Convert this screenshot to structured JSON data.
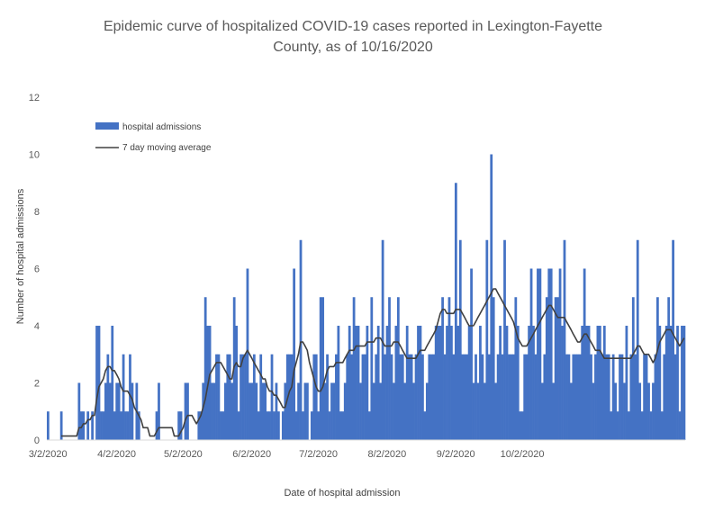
{
  "chart_data": {
    "type": "bar",
    "title_lines": [
      "Epidemic curve of hospitalized COVID-19 cases reported in Lexington-Fayette",
      "County, as of 10/16/2020"
    ],
    "xlabel": "Date of hospital admission",
    "ylabel": "Number of hospital admissions",
    "ylim": [
      0,
      12
    ],
    "yticks": [
      "0",
      "2",
      "4",
      "6",
      "8",
      "10",
      "12"
    ],
    "x_start": "3/2/2020",
    "x_end": "10/15/2020",
    "xtick_labels": [
      "3/2/2020",
      "4/2/2020",
      "5/2/2020",
      "6/2/2020",
      "7/2/2020",
      "8/2/2020",
      "9/2/2020",
      "10/2/2020"
    ],
    "grid": false,
    "legend_position": "upper-left",
    "colors": {
      "bars": "#4472c4",
      "line": "#404040"
    },
    "series": [
      {
        "name": "hospital admissions",
        "kind": "bar",
        "values": [
          1,
          0,
          0,
          0,
          0,
          0,
          1,
          0,
          0,
          0,
          0,
          0,
          0,
          0,
          2,
          1,
          1,
          0,
          1,
          0,
          1,
          0,
          4,
          4,
          1,
          1,
          2,
          3,
          2,
          4,
          1,
          2,
          2,
          1,
          3,
          1,
          1,
          3,
          2,
          0,
          2,
          1,
          0,
          0,
          0,
          0,
          0,
          0,
          0,
          1,
          2,
          0,
          0,
          0,
          0,
          0,
          0,
          0,
          0,
          1,
          1,
          0,
          2,
          2,
          0,
          0,
          0,
          0,
          1,
          1,
          2,
          5,
          4,
          4,
          2,
          2,
          3,
          3,
          1,
          1,
          2,
          3,
          3,
          2,
          5,
          4,
          1,
          3,
          3,
          3,
          6,
          2,
          2,
          3,
          2,
          1,
          3,
          2,
          2,
          1,
          1,
          3,
          1,
          2,
          1,
          0,
          1,
          2,
          3,
          3,
          3,
          6,
          1,
          2,
          7,
          1,
          2,
          2,
          0,
          1,
          3,
          3,
          1,
          5,
          5,
          2,
          3,
          1,
          2,
          2,
          3,
          4,
          1,
          1,
          2,
          3,
          4,
          3,
          5,
          4,
          4,
          2,
          3,
          3,
          4,
          1,
          5,
          2,
          3,
          4,
          2,
          7,
          3,
          4,
          5,
          3,
          2,
          4,
          5,
          3,
          3,
          2,
          4,
          3,
          3,
          2,
          3,
          4,
          4,
          3,
          1,
          2,
          3,
          3,
          3,
          4,
          4,
          4,
          5,
          3,
          4,
          5,
          4,
          3,
          9,
          4,
          7,
          3,
          3,
          3,
          4,
          6,
          2,
          3,
          2,
          4,
          3,
          2,
          7,
          3,
          10,
          5,
          2,
          3,
          4,
          3,
          7,
          4,
          3,
          3,
          3,
          5,
          4,
          1,
          1,
          3,
          3,
          4,
          6,
          4,
          3,
          6,
          6,
          2,
          3,
          5,
          6,
          6,
          2,
          5,
          5,
          6,
          4,
          7,
          3,
          3,
          2,
          3,
          3,
          3,
          3,
          4,
          6,
          4,
          4,
          3,
          2,
          3,
          4,
          4,
          3,
          4,
          3,
          3,
          1,
          3,
          2,
          1,
          3,
          3,
          2,
          4,
          1,
          3,
          5,
          3,
          7,
          2,
          1,
          3,
          3,
          2,
          1,
          2,
          3,
          5,
          4,
          1,
          3,
          4,
          5,
          4,
          7,
          3,
          4,
          1,
          4,
          4
        ]
      },
      {
        "name": "7 day moving average",
        "kind": "line",
        "values": [
          0.14,
          0.14,
          0.14,
          0.14,
          0.14,
          0.14,
          0.14,
          0.14,
          0.14,
          0.14,
          0.14,
          0.14,
          0.14,
          0.14,
          0.43,
          0.43,
          0.57,
          0.57,
          0.71,
          0.71,
          0.86,
          0.86,
          1.43,
          1.86,
          2.0,
          2.14,
          2.43,
          2.57,
          2.57,
          2.43,
          2.43,
          2.29,
          2.14,
          1.86,
          1.71,
          1.71,
          1.71,
          1.57,
          1.43,
          1.14,
          1.0,
          0.86,
          0.71,
          0.43,
          0.43,
          0.43,
          0.14,
          0.14,
          0.14,
          0.29,
          0.43,
          0.43,
          0.43,
          0.43,
          0.43,
          0.43,
          0.43,
          0.14,
          0.14,
          0.14,
          0.29,
          0.43,
          0.71,
          0.86,
          0.86,
          0.86,
          0.71,
          0.57,
          0.71,
          0.86,
          1.14,
          1.43,
          1.86,
          2.29,
          2.43,
          2.57,
          2.71,
          2.71,
          2.71,
          2.57,
          2.43,
          2.29,
          2.14,
          2.14,
          2.57,
          2.71,
          2.57,
          2.57,
          2.86,
          3.0,
          3.14,
          3.0,
          2.86,
          2.71,
          2.57,
          2.43,
          2.29,
          2.14,
          2.14,
          1.86,
          1.71,
          1.71,
          1.57,
          1.57,
          1.43,
          1.29,
          1.14,
          1.14,
          1.43,
          1.71,
          1.86,
          2.43,
          2.71,
          3.0,
          3.43,
          3.43,
          3.29,
          3.14,
          2.71,
          2.43,
          2.14,
          1.86,
          1.71,
          1.71,
          1.86,
          2.14,
          2.43,
          2.57,
          2.57,
          2.57,
          2.71,
          2.71,
          2.71,
          2.71,
          2.86,
          3.0,
          3.14,
          3.14,
          3.14,
          3.29,
          3.29,
          3.29,
          3.29,
          3.29,
          3.43,
          3.43,
          3.43,
          3.43,
          3.57,
          3.57,
          3.57,
          3.43,
          3.29,
          3.29,
          3.29,
          3.29,
          3.43,
          3.43,
          3.43,
          3.29,
          3.14,
          3.0,
          2.86,
          2.86,
          2.86,
          2.86,
          2.86,
          3.0,
          3.14,
          3.14,
          3.14,
          3.29,
          3.43,
          3.57,
          3.71,
          3.86,
          4.14,
          4.43,
          4.57,
          4.57,
          4.43,
          4.43,
          4.43,
          4.43,
          4.57,
          4.57,
          4.57,
          4.43,
          4.29,
          4.14,
          4.0,
          4.0,
          4.0,
          4.14,
          4.29,
          4.43,
          4.57,
          4.71,
          4.86,
          5.0,
          5.14,
          5.29,
          5.29,
          5.14,
          5.0,
          4.86,
          4.71,
          4.57,
          4.43,
          4.29,
          4.14,
          3.86,
          3.57,
          3.43,
          3.29,
          3.29,
          3.29,
          3.43,
          3.57,
          3.71,
          3.86,
          4.0,
          4.14,
          4.29,
          4.43,
          4.57,
          4.71,
          4.71,
          4.57,
          4.43,
          4.29,
          4.29,
          4.29,
          4.29,
          4.14,
          4.0,
          3.86,
          3.71,
          3.57,
          3.43,
          3.43,
          3.57,
          3.71,
          3.71,
          3.57,
          3.43,
          3.29,
          3.14,
          3.14,
          3.14,
          3.0,
          2.86,
          2.86,
          2.86,
          2.86,
          2.86,
          2.86,
          2.86,
          2.86,
          2.86,
          2.86,
          2.86,
          2.86,
          2.86,
          3.0,
          3.14,
          3.29,
          3.29,
          3.14,
          3.0,
          3.0,
          3.0,
          2.86,
          2.71,
          2.86,
          3.14,
          3.43,
          3.57,
          3.71,
          3.86,
          3.86,
          3.86,
          3.71,
          3.57,
          3.43,
          3.29,
          3.43,
          3.57
        ]
      }
    ]
  }
}
